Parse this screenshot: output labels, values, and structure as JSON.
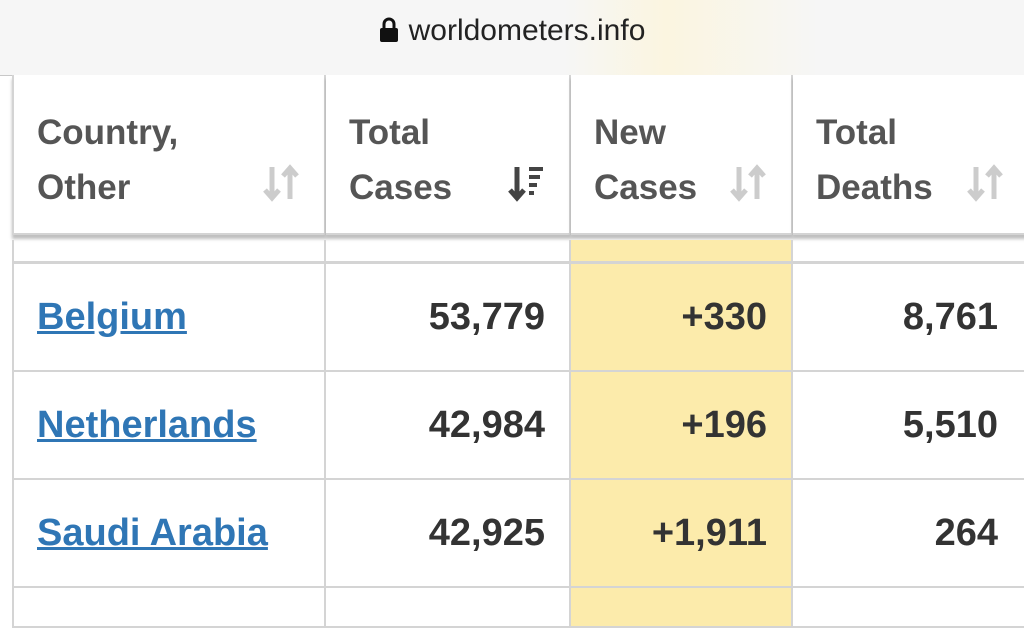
{
  "browser": {
    "url": "worldometers.info"
  },
  "table": {
    "headers": [
      "Country, Other",
      "Total Cases",
      "New Cases",
      "Total Deaths"
    ],
    "rows": [
      [
        "Belgium",
        "53,779",
        "+330",
        "8,761"
      ],
      [
        "Netherlands",
        "42,984",
        "+196",
        "5,510"
      ],
      [
        "Saudi Arabia",
        "42,925",
        "+1,911",
        "264"
      ]
    ]
  }
}
